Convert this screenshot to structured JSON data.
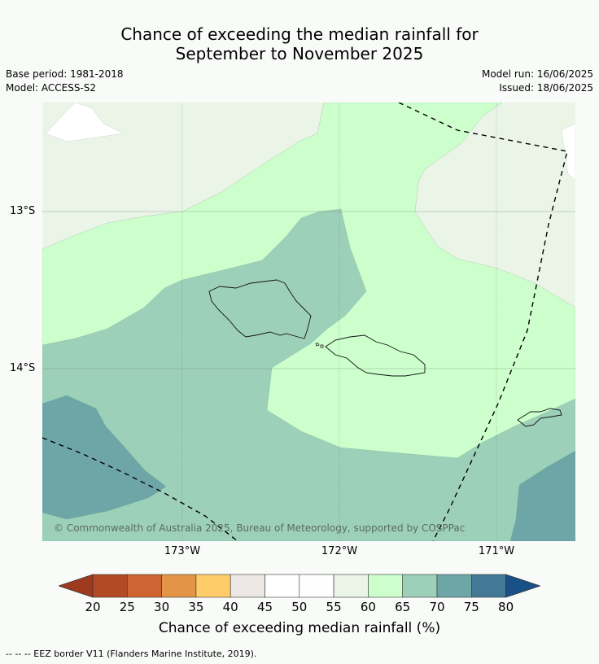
{
  "title_line1": "Chance of exceeding the median rainfall for",
  "title_line2": "September to November 2025",
  "base_period": "Base period: 1981-2018",
  "model": "Model: ACCESS-S2",
  "model_run": "Model run: 16/06/2025",
  "issued": "Issued: 18/06/2025",
  "copyright": "© Commonwealth of Australia 2025, Bureau of Meteorology, supported by COSPPac",
  "map": {
    "lat_labels": [
      "13°S",
      "14°S"
    ],
    "lon_labels": [
      "173°W",
      "172°W",
      "171°W"
    ]
  },
  "colorbar": {
    "ticks": [
      "20",
      "25",
      "30",
      "35",
      "40",
      "45",
      "50",
      "55",
      "60",
      "65",
      "70",
      "75",
      "80"
    ],
    "colors": [
      "#9e3a1e",
      "#b34a25",
      "#cd6431",
      "#e29546",
      "#fecc69",
      "#ede8e5",
      "#ffffff",
      "#fefefe",
      "#eaf5e8",
      "#ccffcc",
      "#9dd0b9",
      "#6ea6a8",
      "#437896",
      "#1a5088"
    ],
    "label": "Chance of exceeding median rainfall (%)"
  },
  "footer": "--  --  -- EEZ border V11 (Flanders Marine Institute, 2019)."
}
